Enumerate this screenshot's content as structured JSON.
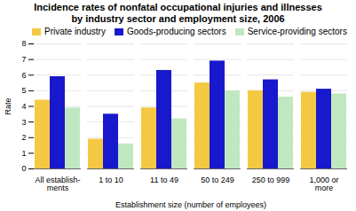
{
  "chart_data": {
    "type": "bar",
    "title": "Incidence rates of nonfatal occupational injuries and illnesses\nby industry sector and employment size, 2006",
    "categories": [
      "All establish-\nments",
      "1 to 10",
      "11 to 49",
      "50 to 249",
      "250 to 999",
      "1,000 or\nmore"
    ],
    "series": [
      {
        "name": "Private industry",
        "color": "#F5C842",
        "values": [
          4.4,
          1.9,
          3.9,
          5.5,
          5.0,
          4.9
        ]
      },
      {
        "name": "Goods-producing sectors",
        "color": "#1818CC",
        "values": [
          5.9,
          3.5,
          6.3,
          6.9,
          5.7,
          5.1
        ]
      },
      {
        "name": "Service-providing sectors",
        "color": "#C0E8C0",
        "values": [
          3.9,
          1.6,
          3.2,
          5.0,
          4.6,
          4.8
        ]
      }
    ],
    "xlabel": "Establishment size (number of employees)",
    "ylabel": "Rate",
    "ylim": [
      0,
      8
    ],
    "yticks": [
      0,
      1,
      2,
      3,
      4,
      5,
      6,
      7,
      8
    ],
    "grid": true,
    "legend": "upper left"
  }
}
